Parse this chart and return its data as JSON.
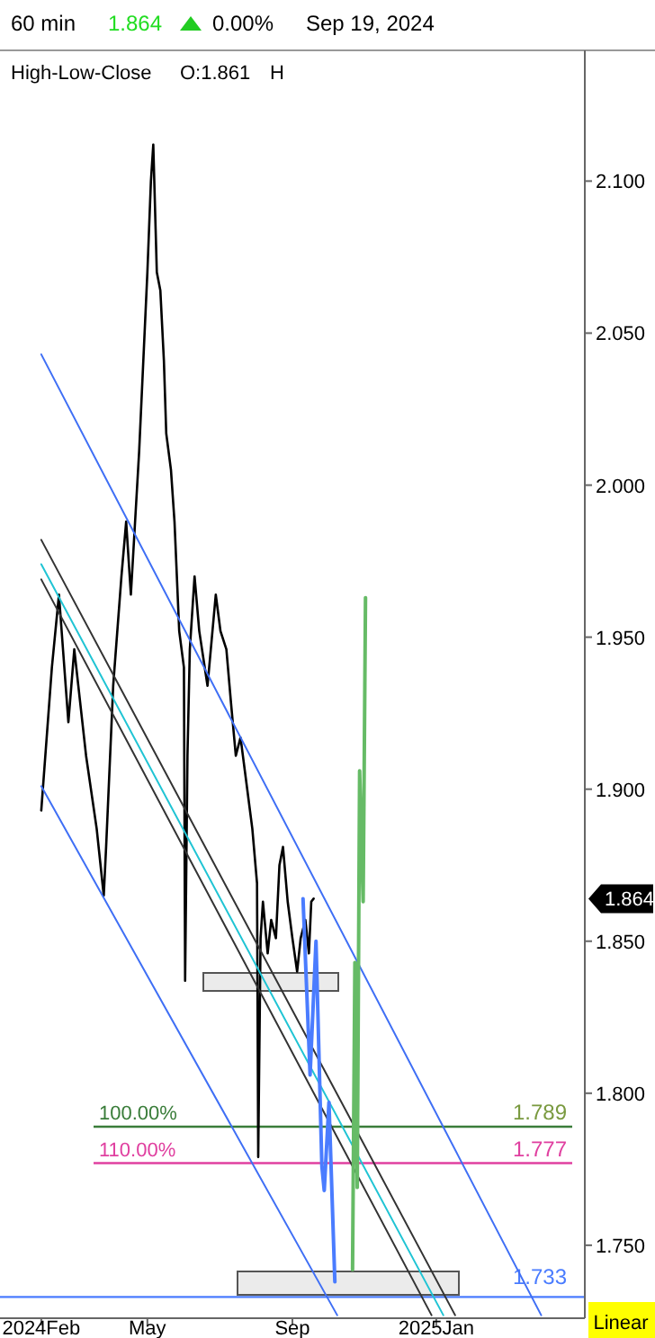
{
  "chart_data": {
    "type": "line",
    "annotations": [
      "60 min",
      "1.864",
      "0.00%",
      "Sep 19, 2024",
      "High-Low-Close",
      "O:1.861",
      "H",
      "1.864",
      "Linear",
      {
        "text": "100.00%",
        "y": 1.789
      },
      {
        "text": "110.00%",
        "y": 1.777
      }
    ],
    "xlim": [
      "2023-12-28",
      "2025-05-07"
    ],
    "xticks": [
      {
        "value": "2024-02-01",
        "label": "2024Feb"
      },
      {
        "value": "2024-05-01",
        "label": "May"
      },
      {
        "value": "2024-09-01",
        "label": "Sep"
      },
      {
        "value": "2025-01-01",
        "label": "2025Jan"
      }
    ],
    "ylim": [
      1.726,
      2.143
    ],
    "yticks": [
      {
        "value": 1.75,
        "label": "1.750"
      },
      {
        "value": 1.8,
        "label": "1.800"
      },
      {
        "value": 1.85,
        "label": "1.850"
      },
      {
        "value": 1.9,
        "label": "1.900"
      },
      {
        "value": 1.95,
        "label": "1.950"
      },
      {
        "value": 2.0,
        "label": "2.000"
      },
      {
        "value": 2.05,
        "label": "2.050"
      },
      {
        "value": 2.1,
        "label": "2.100"
      }
    ],
    "series": [
      {
        "color": "#000000",
        "x": [
          "2024-02-01",
          "2024-02-10",
          "2024-02-16",
          "2024-02-24",
          "2024-02-29",
          "2024-03-10",
          "2024-03-19",
          "2024-03-25",
          "2024-03-27",
          "2024-04-02",
          "2024-04-09",
          "2024-04-13",
          "2024-04-17",
          "2024-04-24",
          "2024-05-01",
          "2024-05-04",
          "2024-05-06",
          "2024-05-09",
          "2024-05-12",
          "2024-05-15",
          "2024-05-17",
          "2024-05-21",
          "2024-05-24",
          "2024-05-28",
          "2024-06-01",
          "2024-06-02",
          "2024-06-04",
          "2024-06-06",
          "2024-06-10",
          "2024-06-14",
          "2024-06-21",
          "2024-06-28",
          "2024-07-02",
          "2024-07-07",
          "2024-07-11",
          "2024-07-15",
          "2024-07-19",
          "2024-07-25",
          "2024-07-29",
          "2024-08-02",
          "2024-08-03",
          "2024-08-05",
          "2024-08-07",
          "2024-08-11",
          "2024-08-14",
          "2024-08-18",
          "2024-08-21",
          "2024-08-24",
          "2024-08-28",
          "2024-09-01",
          "2024-09-05",
          "2024-09-08",
          "2024-09-12",
          "2024-09-15",
          "2024-09-17",
          "2024-09-19"
        ],
        "values": [
          1.893,
          1.94,
          1.964,
          1.922,
          1.946,
          1.911,
          1.887,
          1.865,
          1.881,
          1.934,
          1.97,
          1.988,
          1.964,
          2.011,
          2.07,
          2.1,
          2.112,
          2.07,
          2.064,
          2.041,
          2.017,
          2.005,
          1.988,
          1.952,
          1.94,
          1.837,
          1.911,
          1.946,
          1.97,
          1.952,
          1.934,
          1.964,
          1.952,
          1.946,
          1.928,
          1.911,
          1.917,
          1.899,
          1.887,
          1.869,
          1.779,
          1.851,
          1.863,
          1.846,
          1.857,
          1.851,
          1.875,
          1.881,
          1.863,
          1.851,
          1.84,
          1.851,
          1.857,
          1.846,
          1.863,
          1.864
        ]
      },
      {
        "color": "#3f6ff5",
        "x": [
          "2024-02-01",
          "2025-03-31"
        ],
        "values": [
          2.043,
          1.727
        ]
      },
      {
        "color": "#3f6ff5",
        "x": [
          "2024-02-01",
          "2024-10-09"
        ],
        "values": [
          1.901,
          1.727
        ]
      },
      {
        "color": "#333333",
        "x": [
          "2024-02-01",
          "2025-01-17"
        ],
        "values": [
          1.982,
          1.727
        ]
      },
      {
        "color": "#20c4d4",
        "x": [
          "2024-02-01",
          "2025-01-07"
        ],
        "values": [
          1.974,
          1.727
        ]
      },
      {
        "color": "#333333",
        "x": [
          "2024-02-01",
          "2024-12-28"
        ],
        "values": [
          1.969,
          1.727
        ]
      },
      {
        "color": "#4a7cff",
        "x": [
          "2024-09-10",
          "2024-09-16",
          "2024-09-21",
          "2024-09-26",
          "2024-09-28",
          "2024-10-02",
          "2024-10-07"
        ],
        "values": [
          1.864,
          1.806,
          1.85,
          1.776,
          1.768,
          1.797,
          1.738
        ]
      },
      {
        "color": "#66bb66",
        "x": [
          "2024-10-22",
          "2024-10-24",
          "2024-10-26",
          "2024-10-28",
          "2024-10-31",
          "2024-11-02"
        ],
        "values": [
          1.742,
          1.843,
          1.769,
          1.906,
          1.863,
          1.963
        ]
      }
    ],
    "ref_lines": [
      {
        "axis": "y",
        "value": 1.789,
        "label": "1.789",
        "color": "#3a7d3a"
      },
      {
        "axis": "y",
        "value": 1.777,
        "label": "1.777",
        "color": "#e040a0"
      },
      {
        "axis": "y",
        "value": 1.733,
        "label": "1.733",
        "color": "#4a7cff"
      }
    ]
  }
}
